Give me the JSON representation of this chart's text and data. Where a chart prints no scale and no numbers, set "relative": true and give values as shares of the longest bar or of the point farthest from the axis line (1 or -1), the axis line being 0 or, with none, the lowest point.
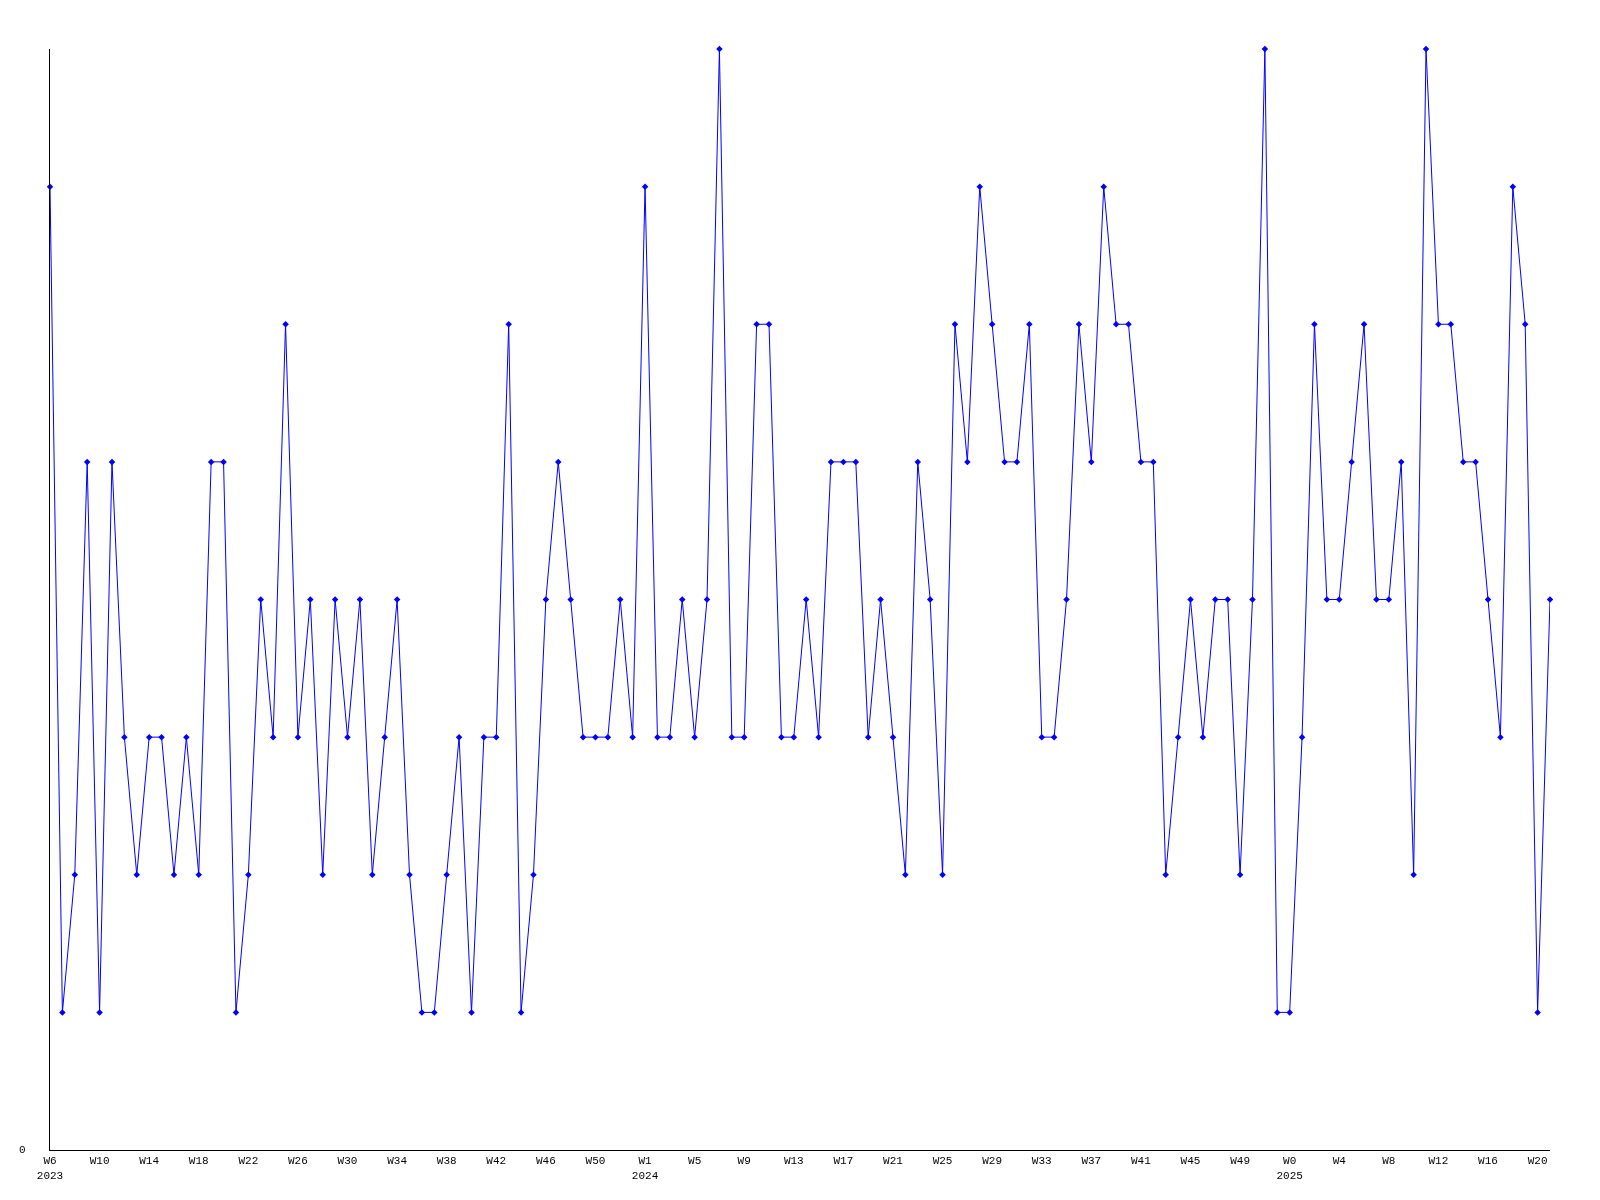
{
  "chart_data": {
    "type": "line",
    "relative": true,
    "categories": [
      "W6\n2023",
      null,
      null,
      null,
      "W10",
      null,
      null,
      null,
      "W14",
      null,
      null,
      null,
      "W18",
      null,
      null,
      null,
      "W22",
      null,
      null,
      null,
      "W26",
      null,
      null,
      null,
      "W30",
      null,
      null,
      null,
      "W34",
      null,
      null,
      null,
      "W38",
      null,
      null,
      null,
      "W42",
      null,
      null,
      null,
      "W46",
      null,
      null,
      null,
      "W50",
      null,
      null,
      null,
      "W1\n2024",
      null,
      null,
      null,
      "W5",
      null,
      null,
      null,
      "W9",
      null,
      null,
      null,
      "W13",
      null,
      null,
      null,
      "W17",
      null,
      null,
      null,
      "W21",
      null,
      null,
      null,
      "W25",
      null,
      null,
      null,
      "W29",
      null,
      null,
      null,
      "W33",
      null,
      null,
      null,
      "W37",
      null,
      null,
      null,
      "W41",
      null,
      null,
      null,
      "W45",
      null,
      null,
      null,
      "W49",
      null,
      null,
      null,
      "W0\n2025",
      null,
      null,
      null,
      "W4",
      null,
      null,
      null,
      "W8",
      null,
      null,
      null,
      "W12",
      null,
      null,
      null,
      "W16",
      null,
      null,
      null,
      "W20",
      null
    ],
    "series": [
      {
        "color": "#0000ff",
        "values": [
          0.875,
          0.125,
          0.25,
          0.625,
          0.125,
          0.625,
          0.375,
          0.25,
          0.375,
          0.375,
          0.25,
          0.375,
          0.25,
          0.625,
          0.625,
          0.125,
          0.25,
          0.5,
          0.375,
          0.75,
          0.375,
          0.5,
          0.25,
          0.5,
          0.375,
          0.5,
          0.25,
          0.375,
          0.5,
          0.25,
          0.125,
          0.125,
          0.25,
          0.375,
          0.125,
          0.375,
          0.375,
          0.75,
          0.125,
          0.25,
          0.5,
          0.625,
          0.5,
          0.375,
          0.375,
          0.375,
          0.5,
          0.375,
          0.875,
          0.375,
          0.375,
          0.5,
          0.375,
          0.5,
          1,
          0.375,
          0.375,
          0.75,
          0.75,
          0.375,
          0.375,
          0.5,
          0.375,
          0.625,
          0.625,
          0.625,
          0.375,
          0.5,
          0.375,
          0.25,
          0.625,
          0.5,
          0.25,
          0.75,
          0.625,
          0.875,
          0.75,
          0.625,
          0.625,
          0.75,
          0.375,
          0.375,
          0.5,
          0.75,
          0.625,
          0.875,
          0.75,
          0.75,
          0.625,
          0.625,
          0.25,
          0.375,
          0.5,
          0.375,
          0.5,
          0.5,
          0.25,
          0.5,
          1,
          0.125,
          0.125,
          0.375,
          0.75,
          0.5,
          0.5,
          0.625,
          0.75,
          0.5,
          0.5,
          0.625,
          0.25,
          1,
          0.75,
          0.75,
          0.625,
          0.625,
          0.5,
          0.375,
          0.875,
          0.75,
          0.125,
          0.5
        ]
      }
    ],
    "annotations": [
      "0"
    ],
    "marker": "diamond",
    "line_style": "solid"
  }
}
